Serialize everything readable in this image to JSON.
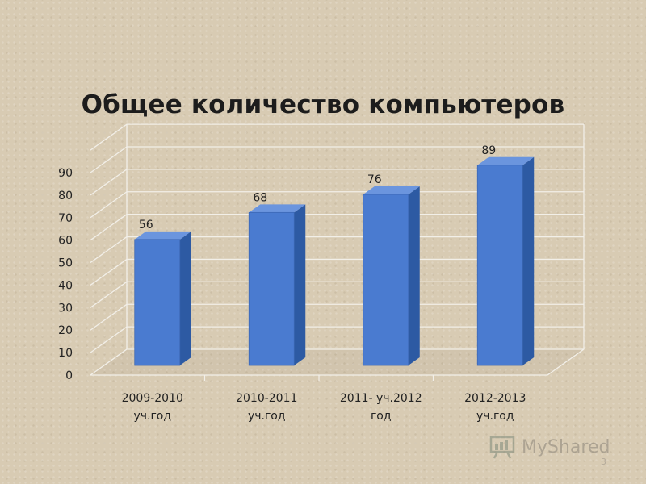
{
  "chart_data": {
    "type": "bar",
    "title": "Общее количество компьютеров",
    "categories": [
      [
        "2009-2010",
        "уч.год"
      ],
      [
        "2010-2011",
        "уч.год"
      ],
      [
        "2011- уч.2012",
        "год"
      ],
      [
        "2012-2013",
        "уч.год"
      ]
    ],
    "values": [
      56,
      68,
      76,
      89
    ],
    "data_labels": [
      "56",
      "68",
      "76",
      "89"
    ],
    "yticks": [
      "0",
      "10",
      "20",
      "30",
      "40",
      "50",
      "60",
      "70",
      "80",
      "90"
    ],
    "ylim": [
      0,
      90
    ],
    "grid": true,
    "colors": {
      "bar_front": "#4a7bd0",
      "bar_side": "#2d5aa3",
      "bar_top": "#6b95de",
      "grid": "#f2efe8"
    }
  },
  "watermark": {
    "text": "MyShared",
    "icon": "presentation-board-icon"
  },
  "slide_number": "3"
}
